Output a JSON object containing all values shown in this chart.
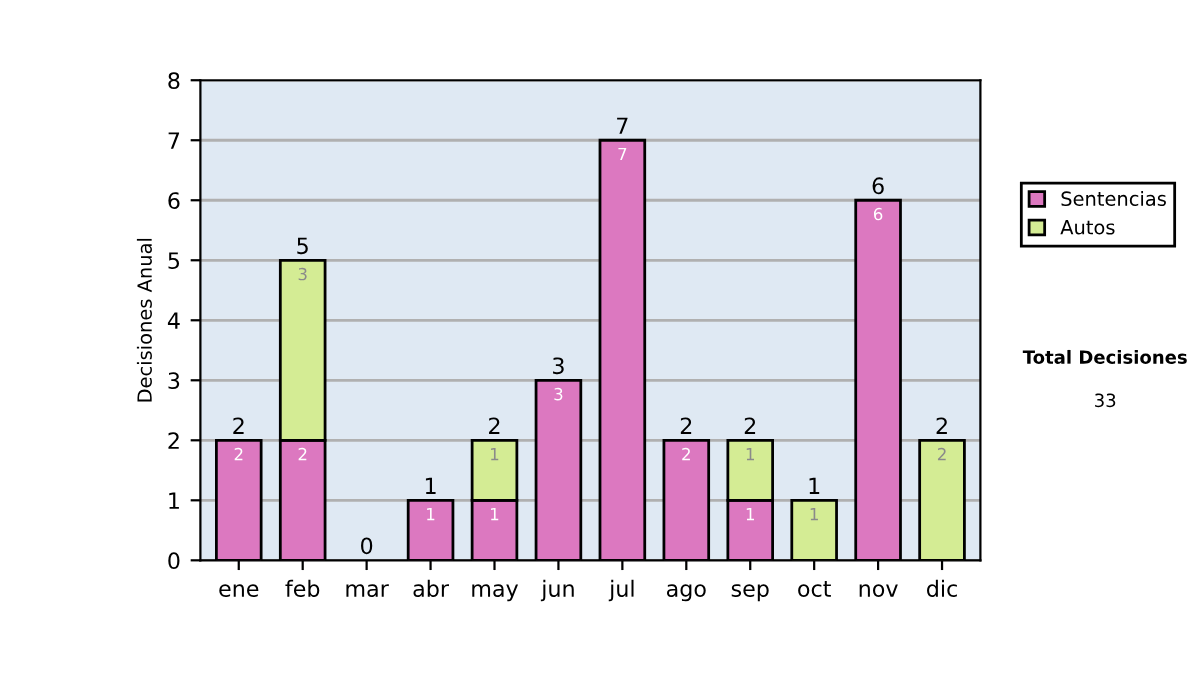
{
  "chart_data": {
    "type": "bar",
    "stacked": true,
    "ylabel": "Decisiones Anual",
    "categories": [
      "ene",
      "feb",
      "mar",
      "abr",
      "may",
      "jun",
      "jul",
      "ago",
      "sep",
      "oct",
      "nov",
      "dic"
    ],
    "series": [
      {
        "name": "Sentencias",
        "color": "#dc78c0",
        "values": [
          2,
          2,
          0,
          1,
          1,
          3,
          7,
          2,
          1,
          0,
          6,
          0
        ],
        "value_labels": [
          "2",
          "2",
          null,
          "1",
          "1",
          "3",
          "7",
          "2",
          "1",
          null,
          "6",
          null
        ]
      },
      {
        "name": "Autos",
        "color": "#d4ec94",
        "values": [
          0,
          3,
          0,
          0,
          1,
          0,
          0,
          0,
          1,
          1,
          0,
          2
        ],
        "value_labels": [
          null,
          "3",
          null,
          null,
          "1",
          null,
          null,
          null,
          "1",
          "1",
          null,
          "2"
        ]
      }
    ],
    "totals": [
      "2",
      "5",
      "0",
      "1",
      "2",
      "3",
      "7",
      "2",
      "2",
      "1",
      "6",
      "2"
    ],
    "ylim": [
      0,
      8
    ],
    "yticks": [
      0,
      1,
      2,
      3,
      4,
      5,
      6,
      7,
      8
    ],
    "grid": "y",
    "legend": "right",
    "annotations": [
      "Total Decisiones",
      "33"
    ]
  }
}
